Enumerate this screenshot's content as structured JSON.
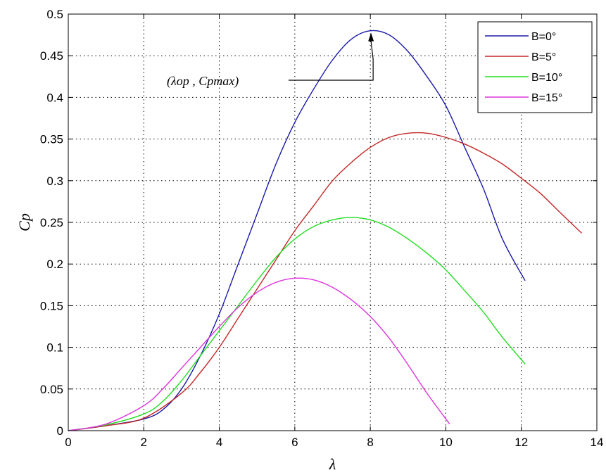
{
  "chart_data": {
    "type": "line",
    "title": "",
    "xlabel": "λ",
    "ylabel": "Cp",
    "xlim": [
      0,
      14
    ],
    "ylim": [
      0,
      0.5
    ],
    "xticks": [
      0,
      2,
      4,
      6,
      8,
      10,
      12,
      14
    ],
    "yticks": [
      0,
      0.05,
      0.1,
      0.15,
      0.2,
      0.25,
      0.3,
      0.35,
      0.4,
      0.45,
      0.5
    ],
    "xtick_labels": [
      "0",
      "2",
      "4",
      "6",
      "8",
      "10",
      "12",
      "14"
    ],
    "ytick_labels": [
      "0",
      "0.05",
      "0.1",
      "0.15",
      "0.2",
      "0.25",
      "0.3",
      "0.35",
      "0.4",
      "0.45",
      "0.5"
    ],
    "grid": true,
    "legend_position": "top-right",
    "series": [
      {
        "name": "B=0°",
        "color": "#1a1aa8",
        "x": [
          0,
          1,
          2,
          2.5,
          3,
          3.5,
          4,
          4.5,
          5,
          5.5,
          6,
          6.5,
          7,
          7.5,
          8,
          8.5,
          9,
          9.5,
          10,
          10.5,
          11,
          11.5,
          12.1
        ],
        "y": [
          0,
          0.006,
          0.014,
          0.025,
          0.05,
          0.09,
          0.14,
          0.2,
          0.26,
          0.32,
          0.37,
          0.41,
          0.445,
          0.47,
          0.48,
          0.475,
          0.455,
          0.425,
          0.39,
          0.34,
          0.29,
          0.23,
          0.18
        ]
      },
      {
        "name": "B=5°",
        "color": "#c42626",
        "x": [
          0,
          1,
          2,
          3,
          3.5,
          4,
          4.5,
          5,
          5.5,
          6,
          6.5,
          7,
          7.5,
          8,
          8.5,
          9,
          9.5,
          10,
          10.5,
          11,
          11.5,
          12,
          12.5,
          13,
          13.6
        ],
        "y": [
          0,
          0.006,
          0.015,
          0.045,
          0.07,
          0.1,
          0.135,
          0.17,
          0.205,
          0.24,
          0.27,
          0.3,
          0.322,
          0.34,
          0.352,
          0.357,
          0.357,
          0.352,
          0.344,
          0.333,
          0.32,
          0.303,
          0.285,
          0.263,
          0.237
        ]
      },
      {
        "name": "B=10°",
        "color": "#22dd22",
        "x": [
          0,
          1,
          2,
          2.5,
          3,
          3.5,
          4,
          4.5,
          5,
          5.5,
          6,
          6.5,
          7,
          7.5,
          8,
          8.5,
          9,
          9.5,
          10,
          10.5,
          11,
          11.5,
          12.1
        ],
        "y": [
          0,
          0.007,
          0.02,
          0.035,
          0.06,
          0.09,
          0.12,
          0.15,
          0.18,
          0.208,
          0.23,
          0.245,
          0.253,
          0.256,
          0.253,
          0.244,
          0.23,
          0.213,
          0.193,
          0.168,
          0.142,
          0.112,
          0.08
        ]
      },
      {
        "name": "B=15°",
        "color": "#dd33dd",
        "x": [
          0,
          1,
          2,
          2.5,
          3,
          3.5,
          4,
          4.5,
          5,
          5.5,
          6,
          6.5,
          7,
          7.5,
          8,
          8.5,
          9,
          9.5,
          10.1
        ],
        "y": [
          0,
          0.008,
          0.03,
          0.05,
          0.075,
          0.1,
          0.125,
          0.148,
          0.166,
          0.178,
          0.183,
          0.181,
          0.172,
          0.157,
          0.137,
          0.111,
          0.079,
          0.045,
          0.008
        ]
      }
    ],
    "annotations": [
      {
        "text": "(λop , Cpmax)",
        "point": [
          8,
          0.48
        ]
      }
    ]
  }
}
